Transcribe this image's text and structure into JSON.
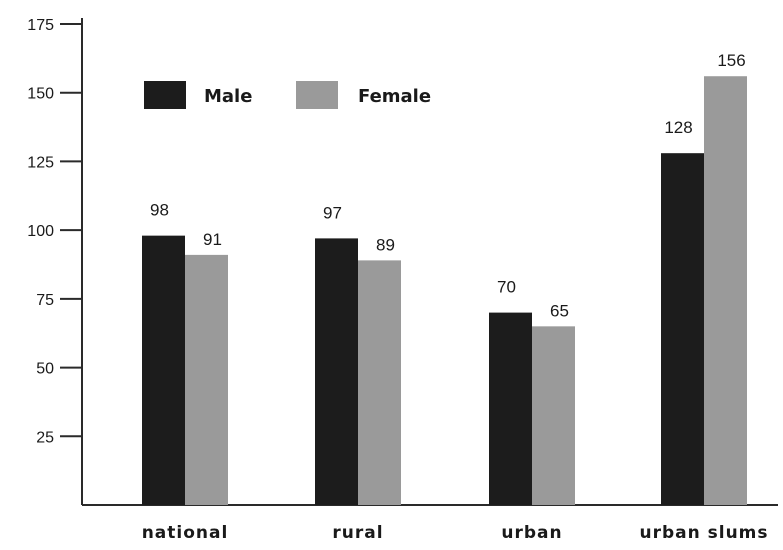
{
  "chart_data": {
    "type": "bar",
    "categories": [
      "national",
      "rural",
      "urban",
      "urban slums"
    ],
    "series": [
      {
        "name": "Male",
        "values": [
          98,
          97,
          70,
          128
        ],
        "color": "#1c1c1c"
      },
      {
        "name": "Female",
        "values": [
          91,
          89,
          65,
          156
        ],
        "color": "#9a9a9a"
      }
    ],
    "ylim": [
      0,
      175
    ],
    "yticks": [
      "175",
      "150",
      "125",
      "100",
      "75",
      "50",
      "25"
    ],
    "legend_position": "top-left",
    "grid": false,
    "title": "",
    "xlabel": "",
    "ylabel": ""
  }
}
